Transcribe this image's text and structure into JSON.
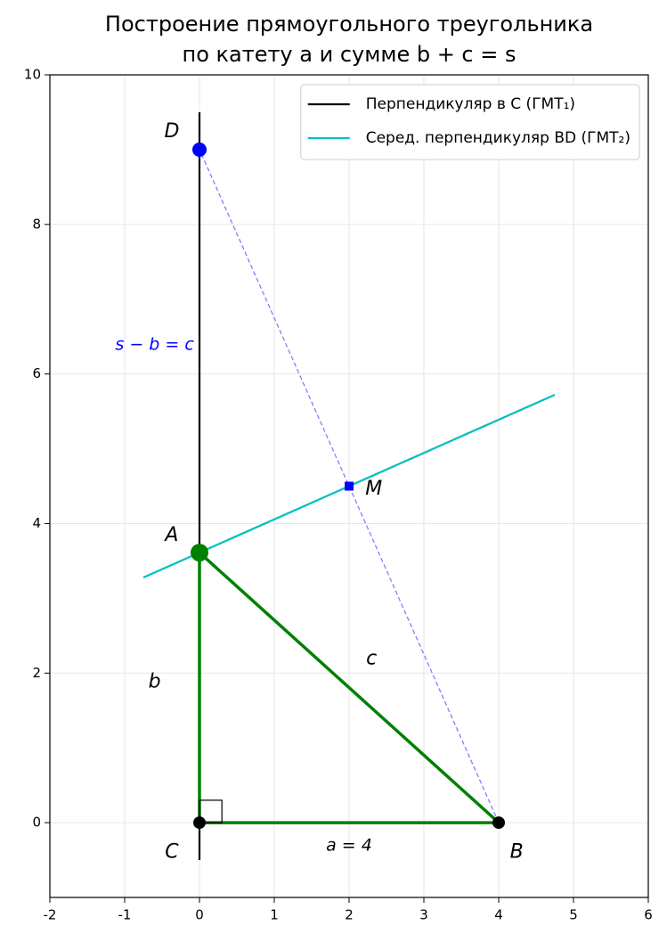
{
  "chart_data": {
    "type": "geometry",
    "title": [
      "Построение прямоугольного треугольника",
      "по катету a и сумме b + c = s"
    ],
    "xlim": [
      -2,
      6
    ],
    "ylim": [
      -1,
      10
    ],
    "xticks": [
      -2,
      -1,
      0,
      1,
      2,
      3,
      4,
      5,
      6
    ],
    "yticks": [
      0,
      2,
      4,
      6,
      8,
      10
    ],
    "grid": true,
    "legend": "upper right",
    "lines": [
      {
        "name": "Перпендикуляр в C (ГМТ₁)",
        "color": "#000000",
        "x": [
          0,
          0
        ],
        "y": [
          -0.5,
          9.5
        ],
        "style": "solid"
      },
      {
        "name": "Серед. перпендикуляр BD (ГМТ₂)",
        "color": "#00bfbf",
        "x": [
          -0.75,
          4.75
        ],
        "y": [
          3.278,
          5.722
        ],
        "style": "solid"
      },
      {
        "color": "#7f7fff",
        "x": [
          4,
          0
        ],
        "y": [
          0,
          9
        ],
        "style": "dashed"
      },
      {
        "color": "#008000",
        "x": [
          0,
          4,
          0,
          0
        ],
        "y": [
          3.611,
          0,
          0,
          3.611
        ],
        "style": "thick"
      }
    ],
    "right_angle": {
      "x": 0,
      "y": 0,
      "size": 0.3
    },
    "points": [
      {
        "x": 0,
        "y": 9,
        "color": "#0000ff",
        "marker": "circle",
        "size": 8
      },
      {
        "x": 0,
        "y": 3.611,
        "color": "#008000",
        "marker": "circle",
        "size": 10
      },
      {
        "x": 0,
        "y": 0,
        "color": "#000000",
        "marker": "circle",
        "size": 7
      },
      {
        "x": 4,
        "y": 0,
        "color": "#000000",
        "marker": "circle",
        "size": 7
      },
      {
        "x": 2,
        "y": 4.5,
        "color": "#0000ff",
        "marker": "square",
        "size": 5
      }
    ],
    "annotations": [
      {
        "text": "D",
        "x": -0.37,
        "y": 9.24,
        "color": "#000000"
      },
      {
        "text": "A",
        "x": -0.37,
        "y": 3.84,
        "color": "#000000"
      },
      {
        "text": "C",
        "x": -0.37,
        "y": -0.4,
        "color": "#000000"
      },
      {
        "text": "B",
        "x": 4.24,
        "y": -0.4,
        "color": "#000000"
      },
      {
        "text": "M",
        "x": 2.33,
        "y": 4.46,
        "color": "#000000"
      },
      {
        "text": "s − b = c",
        "x": -0.6,
        "y": 6.39,
        "color": "#0000ff"
      },
      {
        "text": "b",
        "x": -0.6,
        "y": 1.88,
        "color": "#000000"
      },
      {
        "text": "c",
        "x": 2.3,
        "y": 2.19,
        "color": "#000000"
      },
      {
        "text": "a = 4",
        "x": 2.0,
        "y": -0.31,
        "color": "#000000"
      }
    ]
  }
}
